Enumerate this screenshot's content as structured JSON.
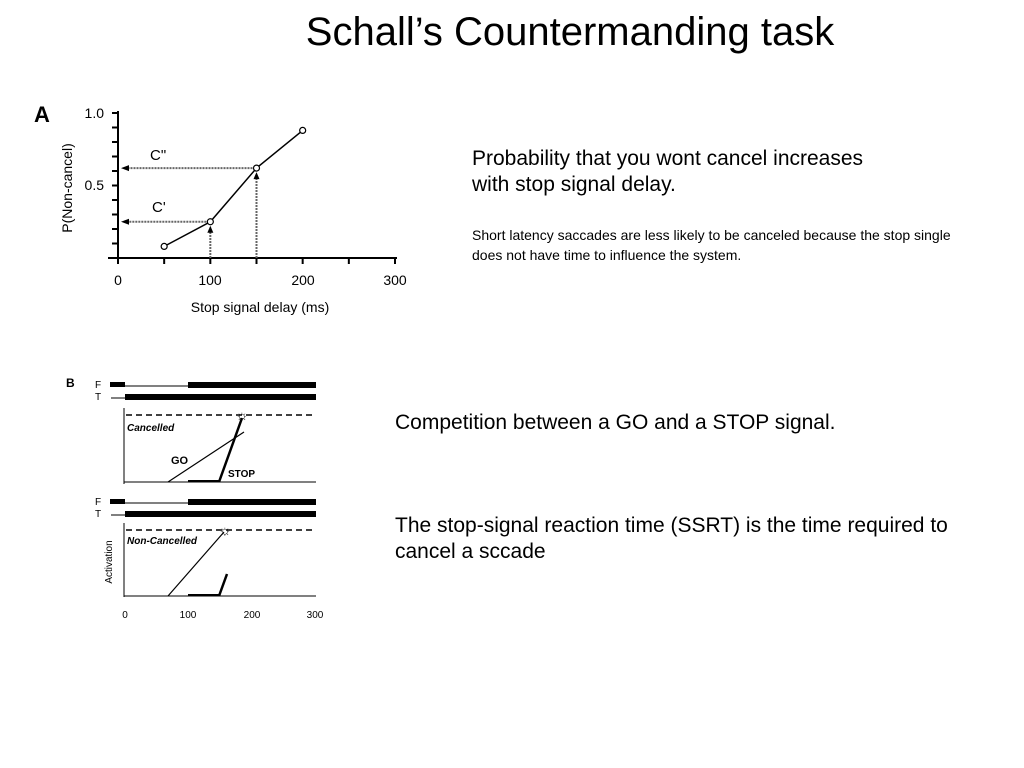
{
  "slide": {
    "title": "Schall’s Countermanding task",
    "text_a_main": "Probability that you wont cancel increases with stop signal delay.",
    "text_a_detail": "Short latency saccades are less likely to be canceled because the stop single does not have time to influence the system.",
    "text_b_1": "Competition between a GO and a STOP signal.",
    "text_b_2": "The stop-signal reaction time (SSRT) is the time required to cancel a sccade"
  },
  "figure_a": {
    "panel_label": "A",
    "type": "line",
    "xlabel": "Stop signal delay (ms)",
    "ylabel": "P(Non-cancel)",
    "xlim": [
      0,
      300
    ],
    "ylim": [
      0,
      1.0
    ],
    "x_ticks": [
      "0",
      "100",
      "200",
      "300"
    ],
    "y_ticks": [
      "0.5",
      "1.0"
    ],
    "x": [
      50,
      100,
      150,
      200
    ],
    "y": [
      0.08,
      0.25,
      0.62,
      0.88
    ],
    "annotations": [
      "C'",
      "C\""
    ]
  },
  "figure_b": {
    "panel_label": "B",
    "row_f": "F",
    "row_t": "T",
    "top_label": "Cancelled",
    "bottom_label": "Non-Cancelled",
    "go_label": "GO",
    "stop_label": "STOP",
    "ylabel": "Activation",
    "x_ticks": [
      "0",
      "100",
      "200",
      "300"
    ]
  }
}
